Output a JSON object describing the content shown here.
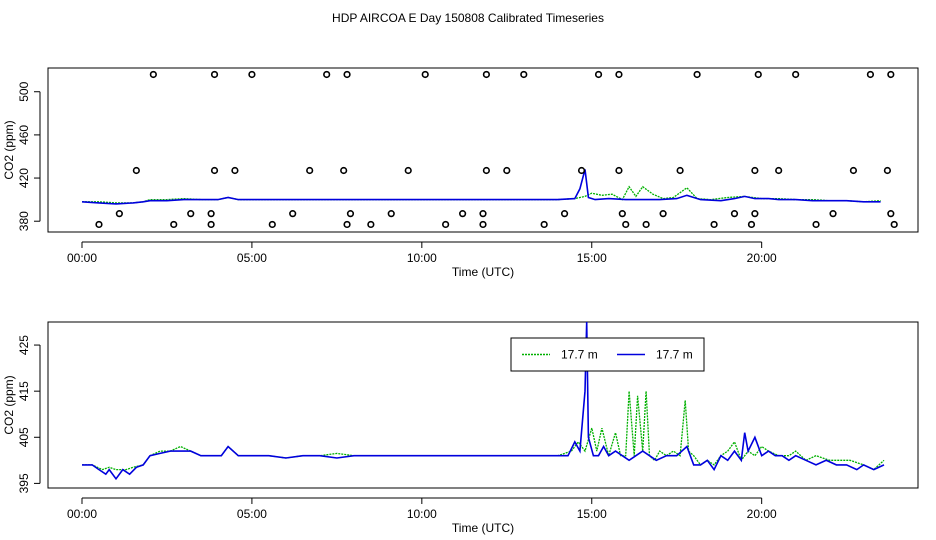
{
  "title": "HDP AIRCOA E  Day 150808  Calibrated Timeseries",
  "colors": {
    "green": "#00b000",
    "blue": "#0000dd",
    "axis": "#000000"
  },
  "chart_data": [
    {
      "type": "line",
      "title": "HDP AIRCOA E  Day 150808  Calibrated Timeseries",
      "xlabel": "Time (UTC)",
      "ylabel": "CO2 (ppm)",
      "x_unit": "hours",
      "xlim": [
        -1,
        24.6
      ],
      "ylim": [
        370,
        522
      ],
      "xticks": [
        0,
        5,
        10,
        15,
        20
      ],
      "xtick_labels": [
        "00:00",
        "05:00",
        "10:00",
        "15:00",
        "20:00"
      ],
      "yticks": [
        380,
        420,
        460,
        500
      ],
      "ytick_labels": [
        "380",
        "420",
        "460",
        "500"
      ],
      "series": [
        {
          "name": "17.7 m",
          "color": "#00b000",
          "x": [
            0,
            0.5,
            1,
            1.5,
            1.8,
            2,
            2.5,
            3,
            3.5,
            4,
            4.3,
            4.6,
            5,
            5.5,
            6,
            6.5,
            7,
            8,
            9,
            10,
            11,
            12,
            13,
            14,
            14.5,
            14.8,
            15,
            15.3,
            15.6,
            15.9,
            16.1,
            16.3,
            16.5,
            16.8,
            17.1,
            17.4,
            17.8,
            18.1,
            18.5,
            19,
            19.5,
            20,
            20.5,
            21,
            21.5,
            22,
            22.5,
            23,
            23.5
          ],
          "y": [
            398,
            398,
            397,
            397,
            398,
            400,
            400,
            401,
            400,
            400,
            402,
            400,
            400,
            400,
            400,
            400,
            400,
            400,
            400,
            400,
            400,
            400,
            400,
            400,
            401,
            403,
            406,
            404,
            405,
            400,
            412,
            403,
            412,
            405,
            401,
            402,
            411,
            401,
            400,
            402,
            403,
            401,
            401,
            400,
            400,
            399,
            399,
            398,
            399
          ]
        },
        {
          "name": "17.7 m",
          "color": "#0000dd",
          "x": [
            0,
            0.5,
            1,
            1.5,
            1.8,
            2,
            2.5,
            3,
            3.5,
            4,
            4.3,
            4.6,
            5,
            5.5,
            6,
            6.5,
            7,
            8,
            9,
            10,
            11,
            12,
            13,
            14,
            14.5,
            14.65,
            14.8,
            14.9,
            15.1,
            15.5,
            16,
            16.5,
            17,
            17.5,
            17.8,
            18.2,
            18.8,
            19.2,
            19.5,
            19.8,
            20.2,
            20.5,
            21,
            21.5,
            22,
            22.5,
            23,
            23.5
          ],
          "y": [
            398,
            397,
            396,
            397,
            398,
            399,
            399,
            400,
            400,
            400,
            402,
            400,
            400,
            400,
            400,
            400,
            400,
            400,
            400,
            400,
            400,
            400,
            400,
            400,
            401,
            410,
            428,
            402,
            400,
            401,
            400,
            400,
            400,
            401,
            404,
            400,
            399,
            401,
            403,
            401,
            401,
            400,
            400,
            399,
            399,
            399,
            398,
            398
          ]
        }
      ],
      "points": {
        "x": [
          0.5,
          1.1,
          1.6,
          2.1,
          2.7,
          3.2,
          3.8,
          3.8,
          3.9,
          3.9,
          4.5,
          5,
          5.6,
          6.2,
          6.7,
          7.2,
          7.7,
          7.8,
          7.8,
          7.9,
          8.5,
          9.1,
          9.6,
          10.1,
          10.7,
          11.2,
          11.8,
          11.8,
          11.9,
          11.9,
          12.5,
          13,
          13.6,
          14.2,
          14.7,
          15.2,
          15.8,
          15.8,
          15.9,
          16,
          16.6,
          17.1,
          17.6,
          18.1,
          18.6,
          19.2,
          19.7,
          19.8,
          19.8,
          19.9,
          20.5,
          21,
          21.6,
          22.1,
          22.7,
          23.2,
          23.7,
          23.8,
          23.8,
          23.9
        ],
        "y": [
          377,
          387,
          427,
          516,
          377,
          387,
          377,
          387,
          427,
          516,
          427,
          516,
          377,
          387,
          427,
          516,
          427,
          516,
          377,
          387,
          377,
          387,
          427,
          516,
          377,
          387,
          377,
          387,
          427,
          516,
          427,
          516,
          377,
          387,
          427,
          516,
          427,
          516,
          387,
          377,
          377,
          387,
          427,
          516,
          377,
          387,
          377,
          387,
          427,
          516,
          427,
          516,
          377,
          387,
          427,
          516,
          427,
          516,
          387,
          377
        ]
      }
    },
    {
      "type": "line",
      "title": "",
      "xlabel": "Time (UTC)",
      "ylabel": "CO2 (ppm)",
      "x_unit": "hours",
      "xlim": [
        -1,
        24.6
      ],
      "ylim": [
        394,
        430
      ],
      "xticks": [
        0,
        5,
        10,
        15,
        20
      ],
      "xtick_labels": [
        "00:00",
        "05:00",
        "10:00",
        "15:00",
        "20:00"
      ],
      "yticks": [
        395,
        405,
        415,
        425
      ],
      "ytick_labels": [
        "395",
        "405",
        "415",
        "425"
      ],
      "legend": {
        "position": "top-right",
        "entries": [
          "17.7 m",
          "17.7 m"
        ]
      },
      "series": [
        {
          "name": "17.7 m",
          "color": "#00b000",
          "x": [
            0,
            0.3,
            0.6,
            0.8,
            1,
            1.3,
            1.5,
            1.8,
            2,
            2.3,
            2.6,
            2.9,
            3.2,
            3.5,
            3.8,
            4.1,
            4.3,
            4.6,
            5,
            5.5,
            6,
            6.5,
            7,
            7.5,
            8,
            9,
            10,
            11,
            12,
            13,
            14,
            14.4,
            14.6,
            14.8,
            15,
            15.15,
            15.3,
            15.5,
            15.7,
            15.85,
            16,
            16.1,
            16.25,
            16.35,
            16.5,
            16.6,
            16.7,
            16.85,
            17,
            17.2,
            17.4,
            17.6,
            17.75,
            17.85,
            18,
            18.2,
            18.4,
            18.6,
            18.8,
            19,
            19.2,
            19.4,
            19.6,
            19.8,
            20,
            20.2,
            20.5,
            20.8,
            21,
            21.3,
            21.6,
            22,
            22.3,
            22.6,
            23,
            23.3,
            23.6
          ],
          "y": [
            399,
            399,
            398,
            398.5,
            398,
            398,
            398.5,
            399,
            401,
            402,
            402,
            403,
            402,
            401,
            401,
            401,
            403,
            401,
            401,
            401,
            400.5,
            401,
            401,
            401.5,
            401,
            401,
            401,
            401,
            401,
            401,
            401,
            402,
            404,
            402,
            407,
            402,
            407,
            401,
            406,
            401,
            401,
            415,
            401,
            414,
            402,
            415,
            401,
            400,
            402,
            401,
            402,
            401,
            413,
            402,
            401,
            399,
            400,
            399,
            401,
            402,
            404,
            400,
            402,
            401,
            403,
            402,
            401,
            401,
            402,
            400,
            401,
            400,
            400,
            400,
            399,
            398,
            400
          ]
        },
        {
          "name": "17.7 m",
          "color": "#0000dd",
          "x": [
            0,
            0.3,
            0.5,
            0.7,
            0.8,
            1,
            1.2,
            1.4,
            1.6,
            1.8,
            2,
            2.3,
            2.6,
            2.9,
            3.2,
            3.5,
            3.8,
            4.1,
            4.3,
            4.6,
            5,
            5.5,
            6,
            6.5,
            7,
            7.5,
            8,
            9,
            10,
            11,
            12,
            13,
            14,
            14.3,
            14.5,
            14.65,
            14.8,
            14.85,
            14.9,
            15.05,
            15.2,
            15.35,
            15.5,
            15.7,
            15.9,
            16.1,
            16.3,
            16.5,
            16.7,
            16.9,
            17.2,
            17.5,
            17.8,
            18,
            18.2,
            18.4,
            18.6,
            18.8,
            19,
            19.2,
            19.4,
            19.5,
            19.6,
            19.8,
            20,
            20.2,
            20.4,
            20.6,
            20.8,
            21,
            21.3,
            21.6,
            21.9,
            22.2,
            22.5,
            22.8,
            23,
            23.3,
            23.6
          ],
          "y": [
            399,
            399,
            398,
            397,
            398,
            396,
            398,
            397,
            398.5,
            399,
            401,
            401.5,
            402,
            402,
            402,
            401,
            401,
            401,
            403,
            401,
            401,
            401,
            400.5,
            401,
            401,
            400.5,
            401,
            401,
            401,
            401,
            401,
            401,
            401,
            401,
            404,
            402,
            415,
            430,
            405,
            401,
            401,
            403,
            401,
            402,
            401,
            400,
            401,
            402,
            401,
            400,
            401,
            401,
            403,
            399,
            399,
            400,
            398,
            401,
            400,
            402,
            400,
            406,
            402,
            405,
            401,
            402,
            401,
            401,
            400,
            401,
            400,
            399,
            400,
            399,
            399,
            398,
            399,
            398,
            399
          ]
        }
      ]
    }
  ]
}
